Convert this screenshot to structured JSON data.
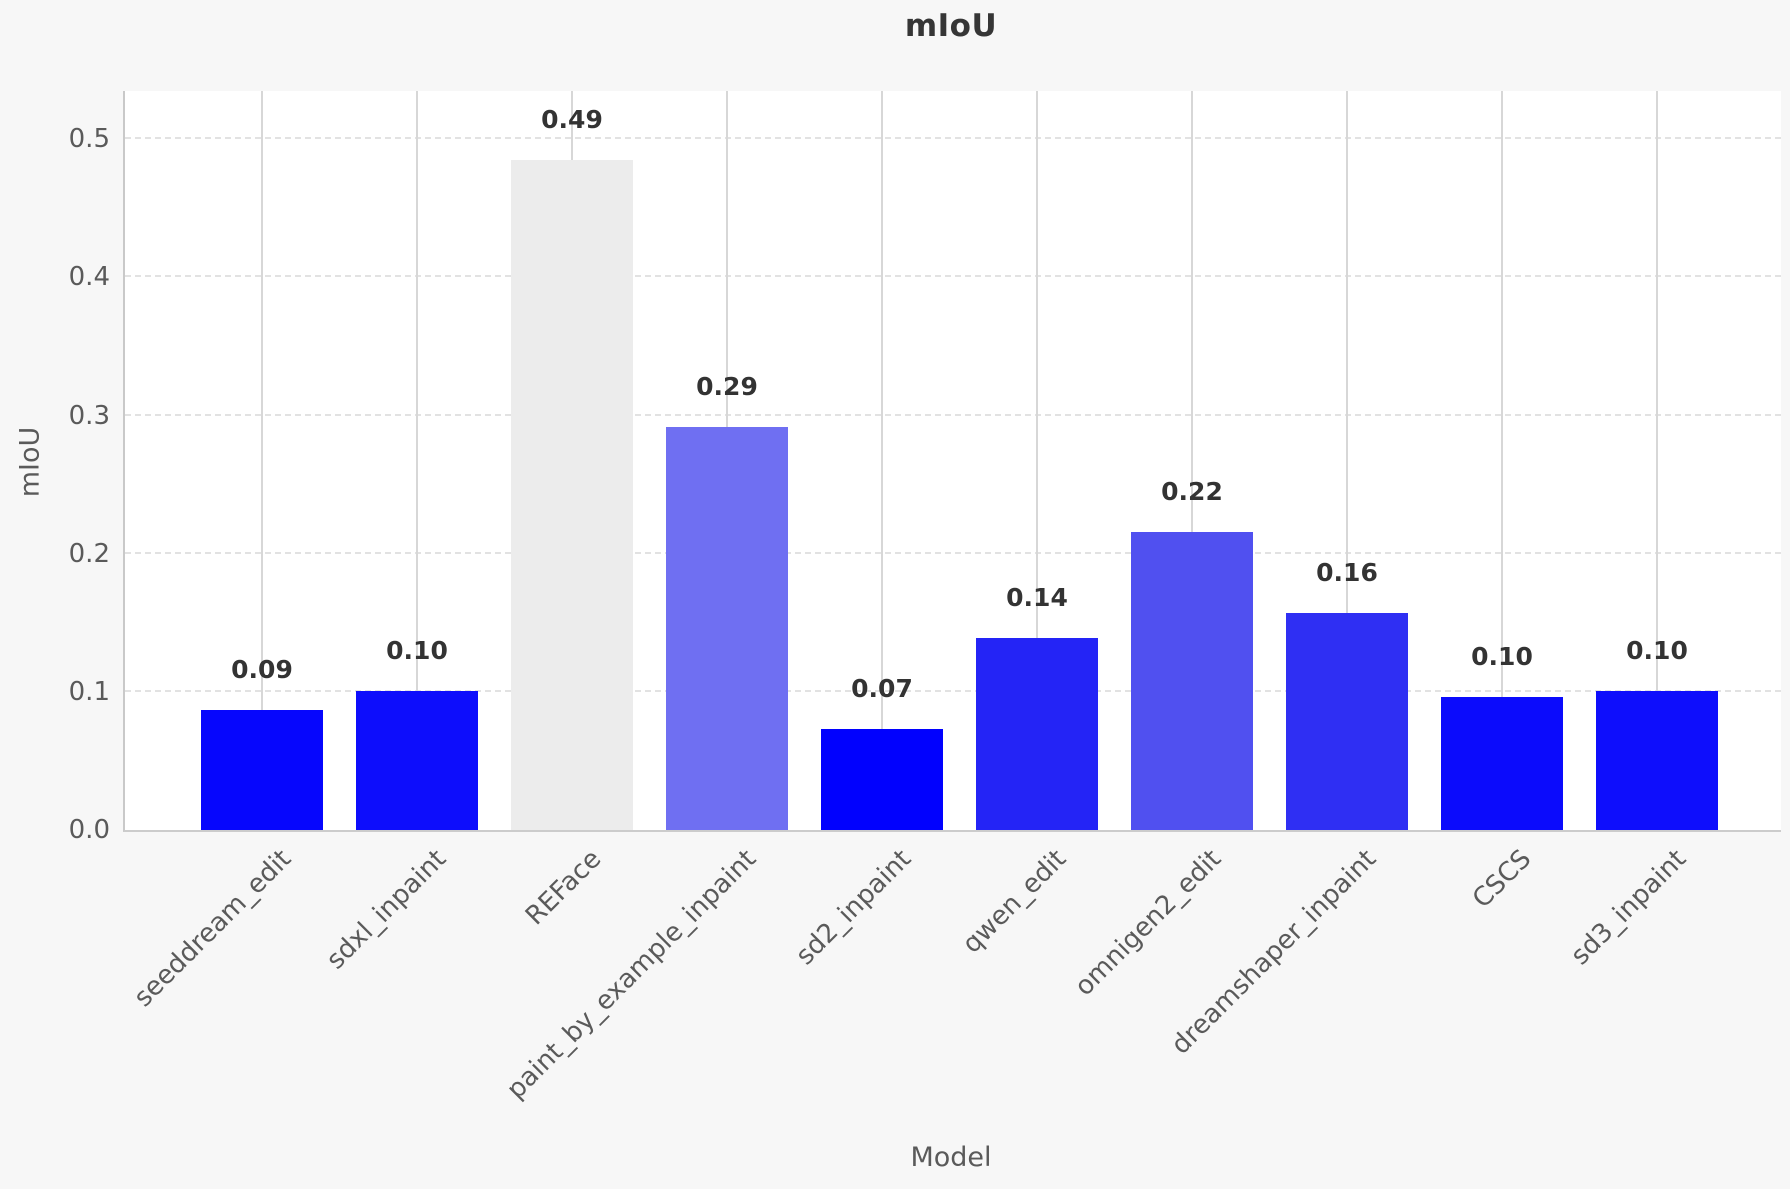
{
  "chart_data": {
    "type": "bar",
    "title": "mIoU",
    "xlabel": "Model",
    "ylabel": "mIoU",
    "categories": [
      "seeddream_edit",
      "sdxl_inpaint",
      "REFace",
      "paint_by_example_inpaint",
      "sd2_inpaint",
      "qwen_edit",
      "omnigen2_edit",
      "dreamshaper_inpaint",
      "CSCS",
      "sd3_inpaint"
    ],
    "values": [
      0.087,
      0.101,
      0.485,
      0.292,
      0.073,
      0.139,
      0.216,
      0.157,
      0.096,
      0.101
    ],
    "value_labels": [
      "0.09",
      "0.10",
      "0.49",
      "0.29",
      "0.07",
      "0.14",
      "0.22",
      "0.16",
      "0.10",
      "0.10"
    ],
    "bar_colors": [
      "#0606fd",
      "#0d0dfc",
      "#ececec",
      "#6f6ff2",
      "#0101fe",
      "#2424f6",
      "#5050f0",
      "#2f2ff3",
      "#0b0bfc",
      "#0e0efc"
    ],
    "ytick_labels": [
      "0.0",
      "0.1",
      "0.2",
      "0.3",
      "0.4",
      "0.5"
    ],
    "ytick_values": [
      0.0,
      0.1,
      0.2,
      0.3,
      0.4,
      0.5
    ],
    "ylim": [
      0,
      0.535
    ],
    "grid": {
      "horizontal": "dashed",
      "vertical": "solid-at-category-centers"
    },
    "legend": "none",
    "colors": {
      "figure_background": "#f7f7f7",
      "plot_background": "#ffffff",
      "primary_bar_blue": "#0101fe",
      "max_bar_gray": "#ececec",
      "grid_dashed": "#e2e2e2",
      "grid_solid": "#d7d7d7",
      "text_dark": "#333333",
      "text_gray": "#5a5a5a"
    }
  }
}
